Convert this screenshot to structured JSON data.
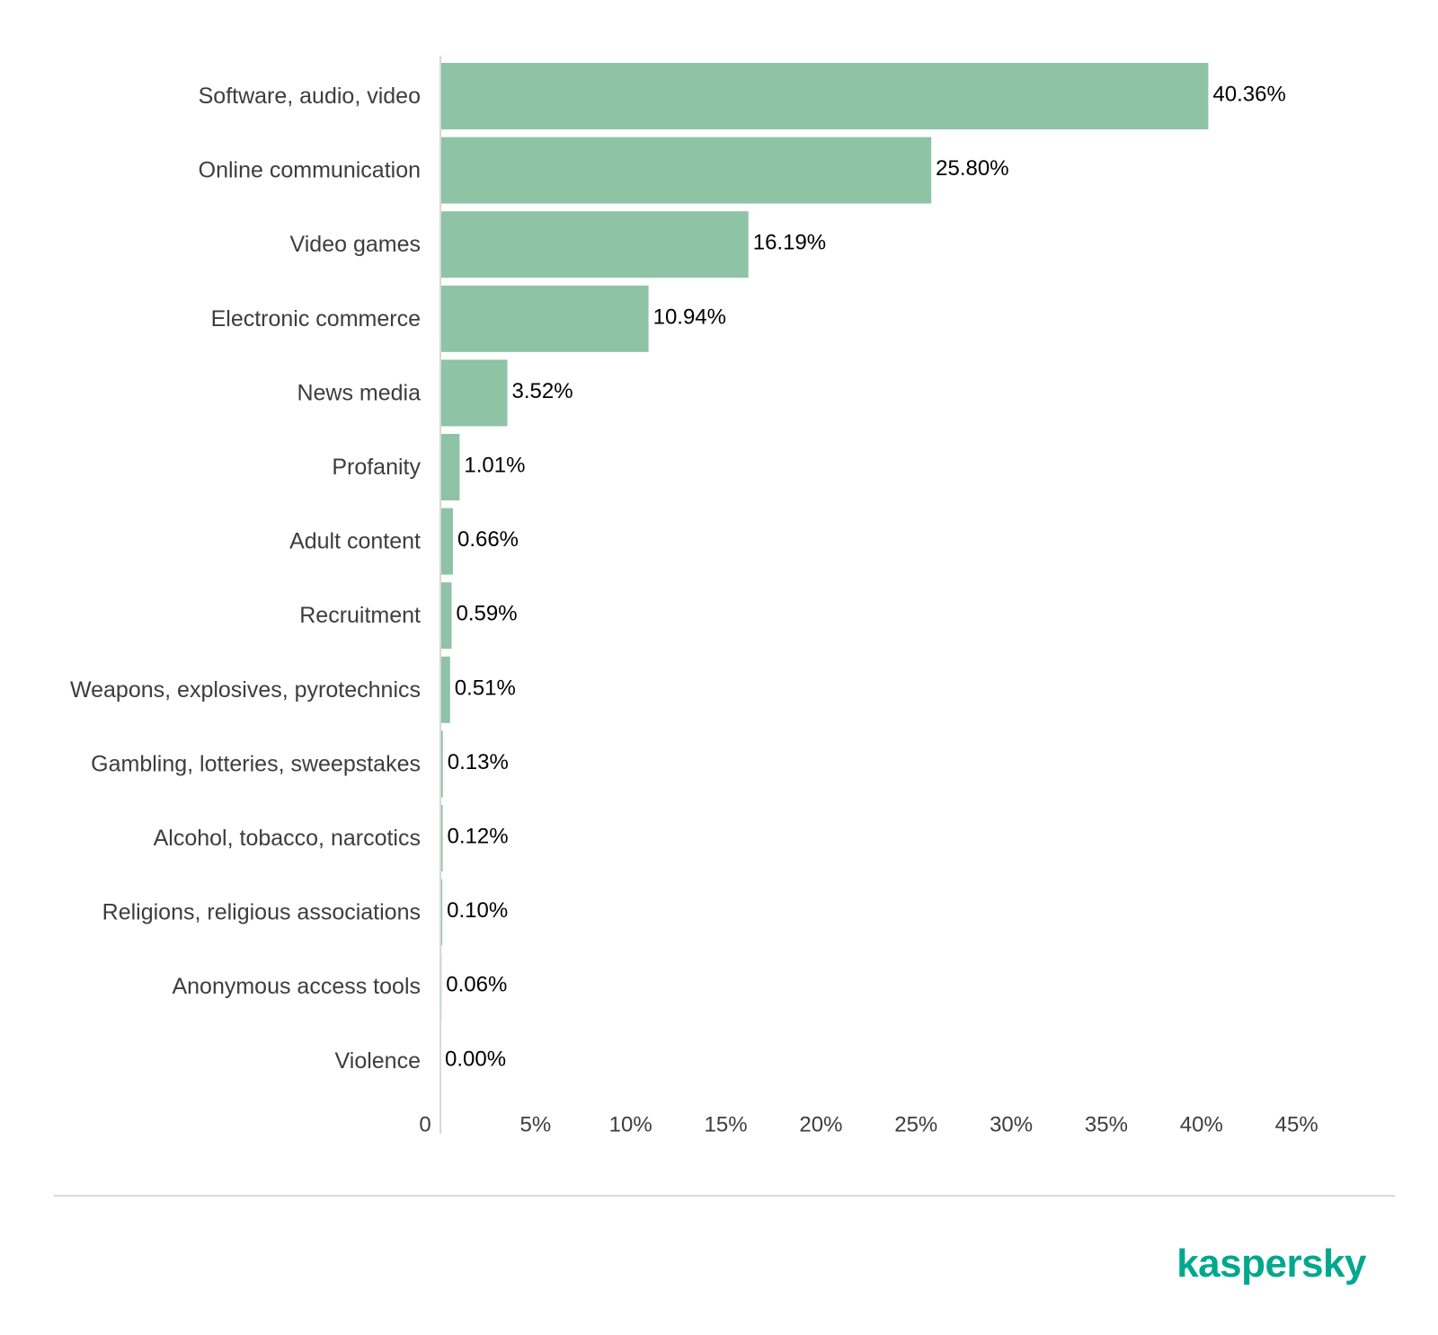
{
  "chart_data": {
    "type": "bar",
    "orientation": "horizontal",
    "categories": [
      "Software, audio, video",
      "Online communication",
      "Video games",
      "Electronic commerce",
      "News media",
      "Profanity",
      "Adult content",
      "Recruitment",
      "Weapons, explosives, pyrotechnics",
      "Gambling, lotteries, sweepstakes",
      "Alcohol, tobacco, narcotics",
      "Religions, religious associations",
      "Anonymous access tools",
      "Violence"
    ],
    "values": [
      40.36,
      25.8,
      16.19,
      10.94,
      3.52,
      1.01,
      0.66,
      0.59,
      0.51,
      0.13,
      0.12,
      0.1,
      0.06,
      0.0
    ],
    "value_labels": [
      "40.36%",
      "25.80%",
      "16.19%",
      "10.94%",
      "3.52%",
      "1.01%",
      "0.66%",
      "0.59%",
      "0.51%",
      "0.13%",
      "0.12%",
      "0.10%",
      "0.06%",
      "0.00%"
    ],
    "xlim": [
      0,
      45
    ],
    "ticks": [
      0,
      5,
      10,
      15,
      20,
      25,
      30,
      35,
      40,
      45
    ],
    "tick_labels": [
      "0",
      "5%",
      "10%",
      "15%",
      "20%",
      "25%",
      "30%",
      "35%",
      "40%",
      "45%"
    ],
    "grid": false,
    "legend": "none",
    "colors": {
      "bar": "#8fc3a6",
      "axis": "#d9d9d9"
    }
  },
  "brand": {
    "logo_text": "kaspersky",
    "color": "#00a88e"
  }
}
